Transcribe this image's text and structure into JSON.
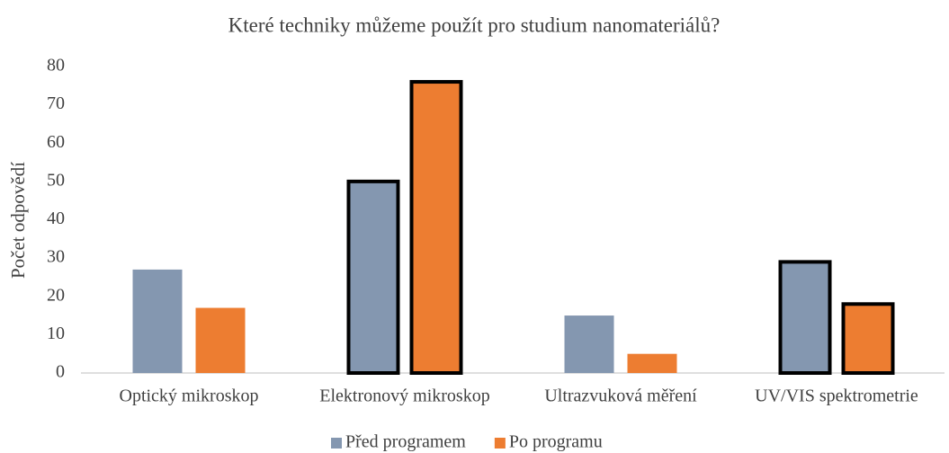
{
  "chart_data": {
    "type": "bar",
    "title": "Které techniky můžeme použít pro studium nanomateriálů?",
    "ylabel": "Počet odpovědí",
    "categories": [
      "Optický mikroskop",
      "Elektronový mikroskop",
      "Ultrazvuková měření",
      "UV/VIS spektrometrie"
    ],
    "series": [
      {
        "name": "Před programem",
        "color": "#8497b0",
        "values": [
          27,
          50,
          15,
          29
        ]
      },
      {
        "name": "Po programu",
        "color": "#ed7d31",
        "values": [
          17,
          76,
          5,
          18
        ]
      }
    ],
    "outlined": [
      false,
      true,
      false,
      true
    ],
    "ylim": [
      0,
      80
    ],
    "yticks": [
      0,
      10,
      20,
      30,
      40,
      50,
      60,
      70,
      80
    ],
    "legend": "bottom"
  }
}
